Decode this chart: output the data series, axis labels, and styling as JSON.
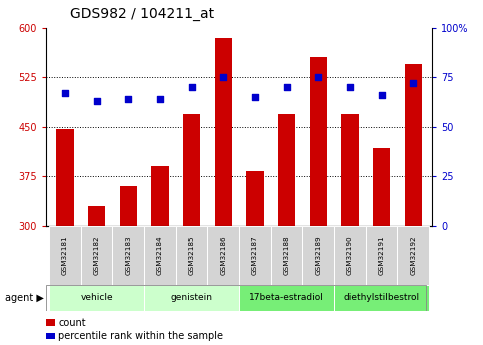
{
  "title": "GDS982 / 104211_at",
  "categories": [
    "GSM32181",
    "GSM32182",
    "GSM32183",
    "GSM32184",
    "GSM32185",
    "GSM32186",
    "GSM32187",
    "GSM32188",
    "GSM32189",
    "GSM32190",
    "GSM32191",
    "GSM32192"
  ],
  "counts": [
    447,
    330,
    360,
    390,
    470,
    585,
    383,
    470,
    555,
    470,
    418,
    545
  ],
  "percentiles": [
    67,
    63,
    64,
    64,
    70,
    75,
    65,
    70,
    75,
    70,
    66,
    72
  ],
  "ymin": 300,
  "ymax": 600,
  "yticks": [
    300,
    375,
    450,
    525,
    600
  ],
  "y2min": 0,
  "y2max": 100,
  "y2ticks": [
    0,
    25,
    50,
    75,
    100
  ],
  "bar_color": "#cc0000",
  "dot_color": "#0000cc",
  "agent_groups": [
    {
      "label": "vehicle",
      "start": 0,
      "end": 3,
      "color": "#ccffcc"
    },
    {
      "label": "genistein",
      "start": 3,
      "end": 6,
      "color": "#ccffcc"
    },
    {
      "label": "17beta-estradiol",
      "start": 6,
      "end": 9,
      "color": "#77ee77"
    },
    {
      "label": "diethylstilbestrol",
      "start": 9,
      "end": 12,
      "color": "#77ee77"
    }
  ],
  "agent_label": "agent",
  "legend_count_label": "count",
  "legend_pct_label": "percentile rank within the sample",
  "title_fontsize": 10,
  "tick_fontsize": 7,
  "label_fontsize": 7.5
}
